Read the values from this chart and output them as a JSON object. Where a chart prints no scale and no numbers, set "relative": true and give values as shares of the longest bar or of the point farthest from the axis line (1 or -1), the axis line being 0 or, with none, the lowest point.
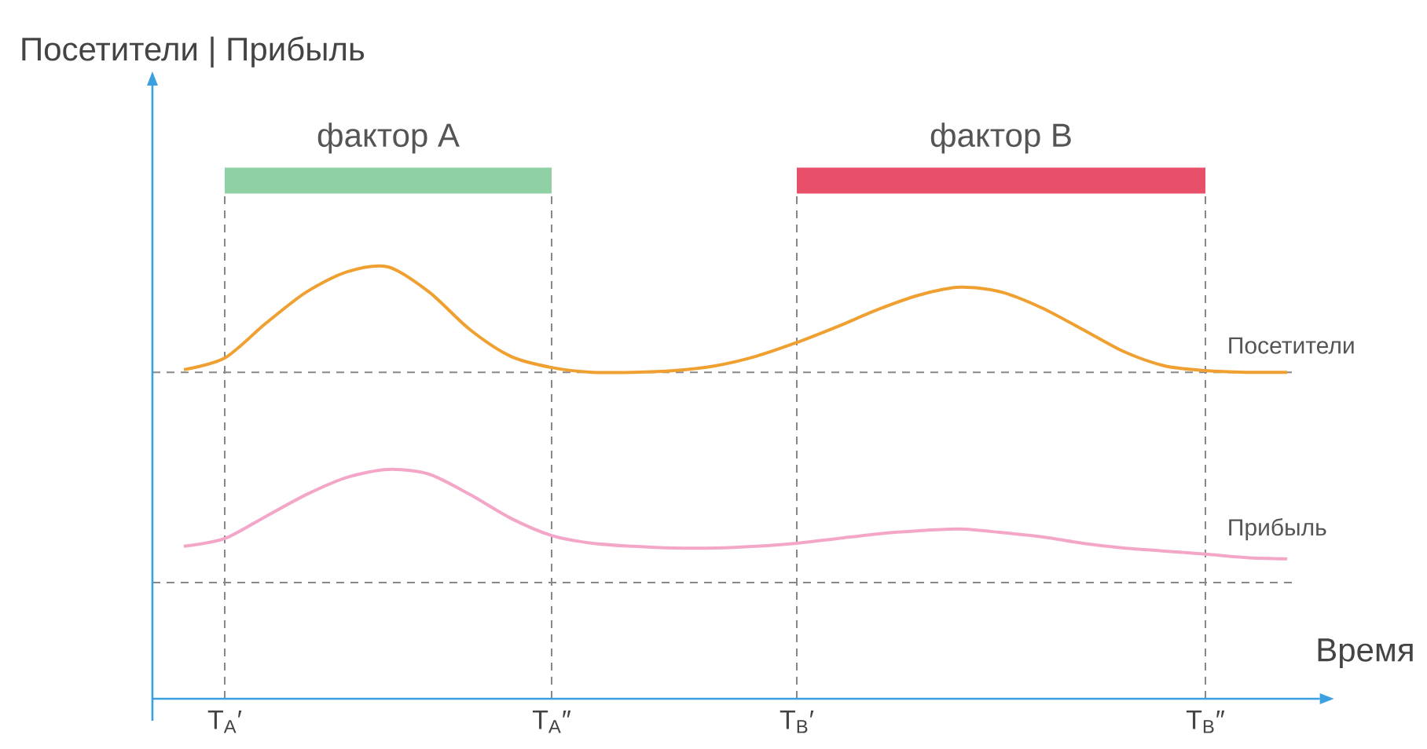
{
  "chart_data": {
    "type": "line",
    "relative": true,
    "annotations": [
      "Посетители | Прибыль",
      "фактор A",
      "фактор B"
    ],
    "xlabel": "Время",
    "categories": [
      null,
      "T$_{A}$′",
      null,
      null,
      null,
      null,
      null,
      null,
      null,
      "T$_{A}$″",
      null,
      null,
      null,
      null,
      null,
      "T$_{B}$′",
      null,
      null,
      null,
      null,
      null,
      null,
      null,
      null,
      null,
      "T$_{B}$″",
      null,
      null
    ],
    "tick_labels": "x",
    "grid": "x",
    "marker": "none",
    "line_style": "solid",
    "series": [
      {
        "name": "Посетители",
        "color": "#f0a030",
        "values": [
          0.762,
          0.789,
          0.869,
          0.942,
          0.989,
          1.0,
          0.942,
          0.855,
          0.793,
          0.767,
          0.756,
          0.756,
          0.76,
          0.771,
          0.793,
          0.825,
          0.862,
          0.902,
          0.935,
          0.953,
          0.942,
          0.905,
          0.855,
          0.804,
          0.771,
          0.76,
          0.756,
          0.756
        ]
      },
      {
        "name": "Прибыль",
        "color": "#f4a6c8",
        "values": [
          0.353,
          0.371,
          0.422,
          0.473,
          0.513,
          0.531,
          0.52,
          0.473,
          0.418,
          0.378,
          0.36,
          0.353,
          0.349,
          0.349,
          0.353,
          0.36,
          0.371,
          0.382,
          0.389,
          0.393,
          0.385,
          0.375,
          0.36,
          0.349,
          0.342,
          0.335,
          0.327,
          0.324
        ]
      }
    ],
    "ref_lines": [
      {
        "axis": "y",
        "value": 0.756,
        "color": "#888888",
        "line_style": "dashed"
      },
      {
        "axis": "y",
        "value": 0.269,
        "color": "#888888",
        "line_style": "dashed"
      }
    ]
  }
}
